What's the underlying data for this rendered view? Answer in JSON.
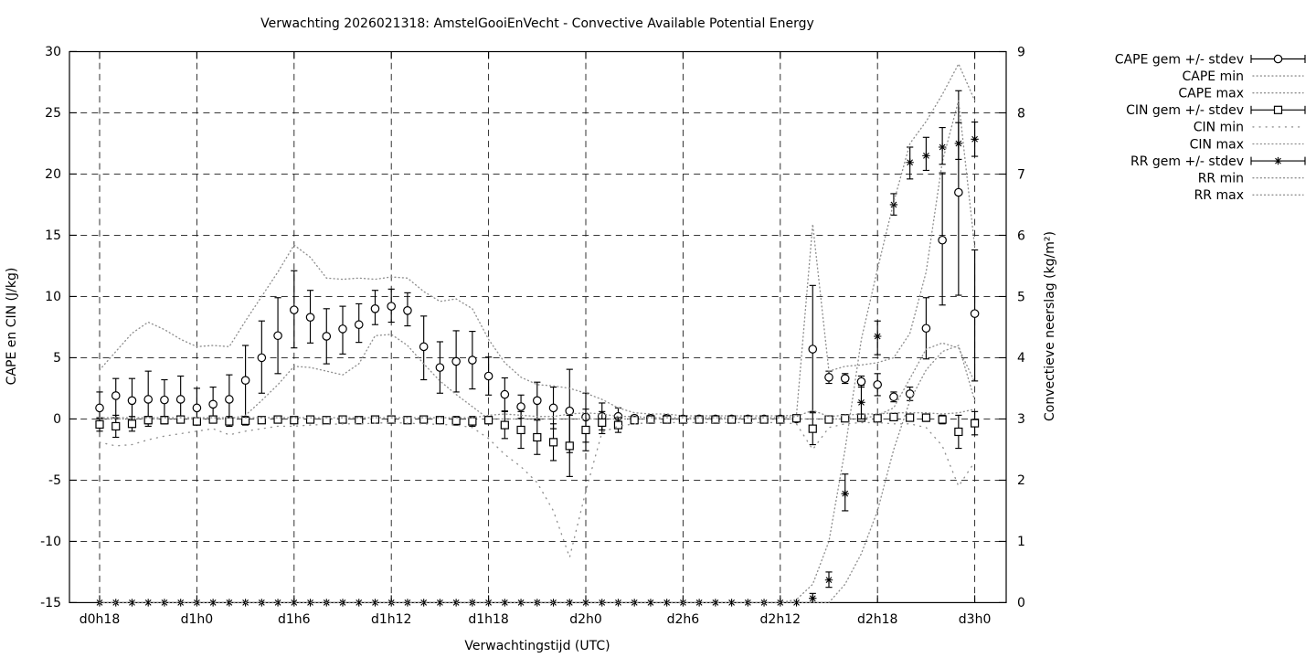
{
  "title": "Verwachting 2026021318: AmstelGooiEnVecht - Convective Available Potential Energy",
  "colors": {
    "foreground": "#000000",
    "dotted_minmax": "#8f8f8f",
    "grid": "#1b1b1b",
    "background": "#ffffff"
  },
  "legend": {
    "items": [
      {
        "label": "CAPE gem +/- stdev",
        "sample": "errorbar",
        "marker": "circle"
      },
      {
        "label": "CAPE min",
        "sample": "dots-fine"
      },
      {
        "label": "CAPE max",
        "sample": "dots-fine"
      },
      {
        "label": "CIN gem +/- stdev",
        "sample": "errorbar",
        "marker": "square"
      },
      {
        "label": "CIN min",
        "sample": "dots-sparse"
      },
      {
        "label": "CIN max",
        "sample": "dots-fine"
      },
      {
        "label": "RR gem +/- stdev",
        "sample": "errorbar",
        "marker": "star"
      },
      {
        "label": "RR min",
        "sample": "dots-fine"
      },
      {
        "label": "RR max",
        "sample": "dots-fine"
      }
    ]
  },
  "chart_data": {
    "type": "line",
    "title": "Verwachting 2026021318: AmstelGooiEnVecht - Convective Available Potential Energy",
    "x_label": "Verwachtingstijd (UTC)",
    "y_left_label": "CAPE en CIN (J/kg)",
    "y_right_label": "Convectieve neerslag (kg/m²)",
    "grid": true,
    "legend_position": "outside-top-right",
    "x_hours_step": 1,
    "x_tick_hours": [
      0,
      6,
      12,
      18,
      24,
      30,
      36,
      42,
      48,
      54
    ],
    "x_tick_labels": [
      "d0h18",
      "d1h0",
      "d1h6",
      "d1h12",
      "d1h18",
      "d2h0",
      "d2h6",
      "d2h12",
      "d2h18",
      "d3h0"
    ],
    "y_left_range": [
      -15,
      30
    ],
    "y_left_ticks": [
      -15,
      -10,
      -5,
      0,
      5,
      10,
      15,
      20,
      25,
      30
    ],
    "y_right_range": [
      0,
      9
    ],
    "y_right_ticks": [
      0,
      1,
      2,
      3,
      4,
      5,
      6,
      7,
      8,
      9
    ],
    "series": [
      {
        "name": "CAPE gem +/- stdev",
        "axis": "left",
        "style": "errorbar",
        "marker": "circle",
        "mean": [
          0.9,
          1.9,
          1.5,
          1.6,
          1.55,
          1.6,
          0.9,
          1.2,
          1.6,
          3.15,
          5.0,
          6.8,
          8.9,
          8.3,
          6.75,
          7.35,
          7.7,
          9.0,
          9.2,
          8.85,
          5.9,
          4.2,
          4.7,
          4.8,
          3.5,
          2.0,
          1.0,
          1.5,
          0.9,
          0.65,
          0.15,
          0.2,
          0.2,
          0.05,
          0.05,
          0.05,
          0.0,
          0.0,
          0.0,
          0.0,
          0.0,
          0.0,
          0.0,
          0.0,
          5.7,
          3.4,
          3.3,
          3.05,
          2.8,
          1.8,
          2.05,
          7.4,
          14.6,
          18.5,
          8.6
        ],
        "lo": [
          0.0,
          0.1,
          -0.3,
          -0.6,
          -0.4,
          -0.3,
          -0.3,
          -0.3,
          -0.4,
          0.1,
          2.1,
          3.7,
          5.8,
          6.2,
          4.5,
          5.3,
          6.25,
          7.7,
          7.9,
          7.6,
          3.2,
          2.1,
          2.2,
          2.45,
          1.95,
          0.65,
          0.05,
          0.0,
          -0.8,
          -2.75,
          -1.9,
          -0.9,
          -0.5,
          -0.2,
          -0.2,
          -0.2,
          0.0,
          0.0,
          0.0,
          0.0,
          0.0,
          0.0,
          0.0,
          0.0,
          0.6,
          2.9,
          2.9,
          2.6,
          1.9,
          1.4,
          1.5,
          4.9,
          9.3,
          10.1,
          3.1
        ],
        "hi": [
          2.2,
          3.3,
          3.3,
          3.9,
          3.2,
          3.5,
          2.5,
          2.6,
          3.6,
          6.0,
          8.0,
          9.9,
          12.1,
          10.5,
          9.0,
          9.2,
          9.4,
          10.5,
          10.6,
          10.3,
          8.4,
          6.3,
          7.2,
          7.15,
          5.05,
          3.35,
          1.95,
          3.0,
          2.6,
          4.05,
          2.1,
          1.3,
          0.9,
          0.3,
          0.3,
          0.3,
          0.0,
          0.0,
          0.0,
          0.0,
          0.0,
          0.0,
          0.0,
          0.0,
          10.9,
          3.9,
          3.7,
          3.5,
          3.7,
          2.2,
          2.6,
          9.9,
          20.1,
          26.8,
          13.8
        ]
      },
      {
        "name": "CAPE min",
        "axis": "left",
        "style": "dotted",
        "values": [
          0,
          0,
          0,
          0,
          0,
          0,
          0,
          0,
          0,
          0.3,
          1.5,
          2.8,
          4.3,
          4.2,
          3.9,
          3.6,
          4.5,
          6.8,
          6.9,
          6.0,
          4.5,
          3.1,
          2.0,
          1.0,
          0,
          0,
          0,
          0,
          0,
          0,
          0,
          0,
          0,
          0,
          0,
          0,
          0,
          0,
          0,
          0,
          0,
          0,
          0,
          0,
          0,
          0,
          0,
          0,
          0.3,
          0.9,
          3.3,
          5.7,
          6.2,
          5.8,
          3.0
        ]
      },
      {
        "name": "CAPE max",
        "axis": "left",
        "style": "dotted",
        "values": [
          4.0,
          5.5,
          7.0,
          7.9,
          7.3,
          6.5,
          5.9,
          6.0,
          5.9,
          8.0,
          10.0,
          12.0,
          14.2,
          13.2,
          11.5,
          11.4,
          11.5,
          11.4,
          11.6,
          11.5,
          10.4,
          9.6,
          9.8,
          9.0,
          6.5,
          4.6,
          3.4,
          2.8,
          2.7,
          2.5,
          2.1,
          1.6,
          0.9,
          0.5,
          0.4,
          0.4,
          0.25,
          0.25,
          0.25,
          0.25,
          0.25,
          0.25,
          0.25,
          0.3,
          15.9,
          3.9,
          4.3,
          4.4,
          4.6,
          5.0,
          7.0,
          12.0,
          21.0,
          26.0,
          14.0
        ]
      },
      {
        "name": "CIN gem +/- stdev",
        "axis": "left",
        "style": "errorbar",
        "marker": "square",
        "mean": [
          -0.45,
          -0.6,
          -0.4,
          -0.1,
          -0.1,
          -0.05,
          -0.2,
          -0.05,
          -0.2,
          -0.15,
          -0.1,
          -0.05,
          -0.1,
          -0.05,
          -0.1,
          -0.05,
          -0.1,
          -0.05,
          -0.05,
          -0.1,
          -0.05,
          -0.1,
          -0.15,
          -0.2,
          -0.1,
          -0.5,
          -0.9,
          -1.5,
          -1.9,
          -2.2,
          -0.9,
          -0.3,
          -0.5,
          -0.1,
          -0.05,
          -0.05,
          -0.05,
          -0.05,
          -0.05,
          -0.05,
          -0.05,
          -0.05,
          -0.05,
          0.05,
          -0.8,
          -0.05,
          0.05,
          0.1,
          0.05,
          0.15,
          0.1,
          0.1,
          -0.05,
          -1.05,
          -0.35
        ],
        "lo": [
          -1.0,
          -1.5,
          -1.0,
          -0.4,
          -0.4,
          -0.3,
          -0.5,
          -0.3,
          -0.6,
          -0.5,
          -0.3,
          -0.2,
          -0.3,
          -0.2,
          -0.3,
          -0.2,
          -0.3,
          -0.2,
          -0.2,
          -0.3,
          -0.2,
          -0.3,
          -0.5,
          -0.6,
          -0.4,
          -1.6,
          -2.4,
          -2.9,
          -3.4,
          -4.7,
          -2.6,
          -1.2,
          -1.1,
          -0.4,
          -0.2,
          -0.2,
          -0.2,
          -0.2,
          -0.2,
          -0.2,
          -0.2,
          -0.2,
          -0.2,
          -0.1,
          -2.1,
          -0.3,
          -0.1,
          -0.1,
          -0.1,
          -0.1,
          -0.1,
          -0.2,
          -0.4,
          -2.4,
          -1.3
        ],
        "hi": [
          0.1,
          0.3,
          0.2,
          0.2,
          0.2,
          0.2,
          0.1,
          0.2,
          0.2,
          0.2,
          0.1,
          0.1,
          0.1,
          0.1,
          0.1,
          0.1,
          0.1,
          0.1,
          0.1,
          0.1,
          0.1,
          0.1,
          0.2,
          0.2,
          0.2,
          0.6,
          0.6,
          -0.1,
          -0.4,
          0.3,
          0.8,
          0.6,
          0.1,
          0.2,
          0.1,
          0.1,
          0.1,
          0.1,
          0.1,
          0.1,
          0.1,
          0.1,
          0.1,
          0.2,
          0.5,
          0.2,
          0.2,
          0.3,
          0.2,
          0.4,
          0.3,
          0.4,
          0.3,
          0.3,
          0.6
        ]
      },
      {
        "name": "CIN min",
        "axis": "left",
        "style": "dotted-sparse",
        "values": [
          -1.9,
          -2.2,
          -2.1,
          -1.7,
          -1.4,
          -1.2,
          -1.0,
          -0.8,
          -1.3,
          -1.0,
          -0.8,
          -0.6,
          -0.6,
          -0.5,
          -0.45,
          -0.4,
          -0.4,
          -0.35,
          -0.3,
          -0.35,
          -0.4,
          -0.45,
          -0.5,
          -0.7,
          -1.6,
          -2.9,
          -3.9,
          -5.2,
          -7.5,
          -11.3,
          -5.9,
          -1.1,
          -0.6,
          -0.4,
          -0.3,
          -0.3,
          -0.3,
          -0.3,
          -0.3,
          -0.3,
          -0.3,
          -0.3,
          -0.3,
          -0.4,
          -2.5,
          -0.7,
          -0.4,
          -0.3,
          -0.3,
          -0.4,
          -0.4,
          -0.7,
          -2.2,
          -5.5,
          -3.5
        ]
      },
      {
        "name": "CIN max",
        "axis": "left",
        "style": "dotted",
        "values": [
          0.1,
          0.1,
          0.1,
          0.1,
          0.1,
          0.1,
          0.1,
          0.1,
          0.1,
          0.1,
          0.1,
          0.1,
          0.1,
          0.1,
          0.1,
          0.1,
          0.1,
          0.1,
          0.1,
          0.1,
          0.1,
          0.1,
          0.1,
          0.1,
          0.3,
          0.4,
          0.3,
          0.2,
          0.2,
          0.4,
          0.5,
          0.4,
          0.2,
          0.2,
          0.1,
          0.1,
          0.1,
          0.1,
          0.1,
          0.1,
          0.1,
          0.1,
          0.1,
          0.2,
          0.7,
          0.2,
          0.3,
          0.4,
          0.4,
          0.5,
          0.5,
          0.5,
          0.4,
          0.5,
          0.8
        ]
      },
      {
        "name": "RR gem +/- stdev",
        "axis": "right",
        "style": "errorbar",
        "marker": "star",
        "mean": [
          0,
          0,
          0,
          0,
          0,
          0,
          0,
          0,
          0,
          0,
          0,
          0,
          0,
          0,
          0,
          0,
          0,
          0,
          0,
          0,
          0,
          0,
          0,
          0,
          0,
          0,
          0,
          0,
          0,
          0,
          0,
          0,
          0,
          0,
          0,
          0,
          0,
          0,
          0,
          0,
          0,
          0,
          0,
          0,
          0.07,
          0.37,
          1.78,
          3.27,
          4.35,
          6.5,
          7.19,
          7.3,
          7.44,
          7.5,
          7.57
        ],
        "lo": [
          0,
          0,
          0,
          0,
          0,
          0,
          0,
          0,
          0,
          0,
          0,
          0,
          0,
          0,
          0,
          0,
          0,
          0,
          0,
          0,
          0,
          0,
          0,
          0,
          0,
          0,
          0,
          0,
          0,
          0,
          0,
          0,
          0,
          0,
          0,
          0,
          0,
          0,
          0,
          0,
          0,
          0,
          0,
          0,
          0.0,
          0.25,
          1.5,
          3.0,
          4.05,
          6.33,
          6.92,
          7.06,
          7.16,
          7.24,
          7.29
        ],
        "hi": [
          0,
          0,
          0,
          0,
          0,
          0,
          0,
          0,
          0,
          0,
          0,
          0,
          0,
          0,
          0,
          0,
          0,
          0,
          0,
          0,
          0,
          0,
          0,
          0,
          0,
          0,
          0,
          0,
          0,
          0,
          0,
          0,
          0,
          0,
          0,
          0,
          0,
          0,
          0,
          0,
          0,
          0,
          0,
          0,
          0.15,
          0.5,
          2.1,
          3.55,
          4.6,
          6.68,
          7.44,
          7.6,
          7.76,
          7.84,
          7.85
        ]
      },
      {
        "name": "RR min",
        "axis": "right",
        "style": "dotted",
        "values": [
          0,
          0,
          0,
          0,
          0,
          0,
          0,
          0,
          0,
          0,
          0,
          0,
          0,
          0,
          0,
          0,
          0,
          0,
          0,
          0,
          0,
          0,
          0,
          0,
          0,
          0,
          0,
          0,
          0,
          0,
          0,
          0,
          0,
          0,
          0,
          0,
          0,
          0,
          0,
          0,
          0,
          0,
          0,
          0,
          0,
          0,
          0.3,
          0.8,
          1.5,
          2.5,
          3.3,
          3.8,
          4.1,
          4.2,
          3.3
        ]
      },
      {
        "name": "RR max",
        "axis": "right",
        "style": "dotted",
        "values": [
          0,
          0,
          0,
          0,
          0,
          0,
          0,
          0,
          0,
          0,
          0,
          0,
          0,
          0,
          0,
          0,
          0,
          0,
          0,
          0,
          0,
          0,
          0,
          0,
          0,
          0,
          0,
          0,
          0,
          0,
          0,
          0,
          0,
          0,
          0,
          0,
          0,
          0,
          0,
          0,
          0,
          0,
          0,
          0.05,
          0.3,
          1.0,
          2.5,
          4.3,
          5.45,
          6.54,
          7.5,
          7.86,
          8.3,
          8.8,
          8.2
        ]
      }
    ]
  }
}
